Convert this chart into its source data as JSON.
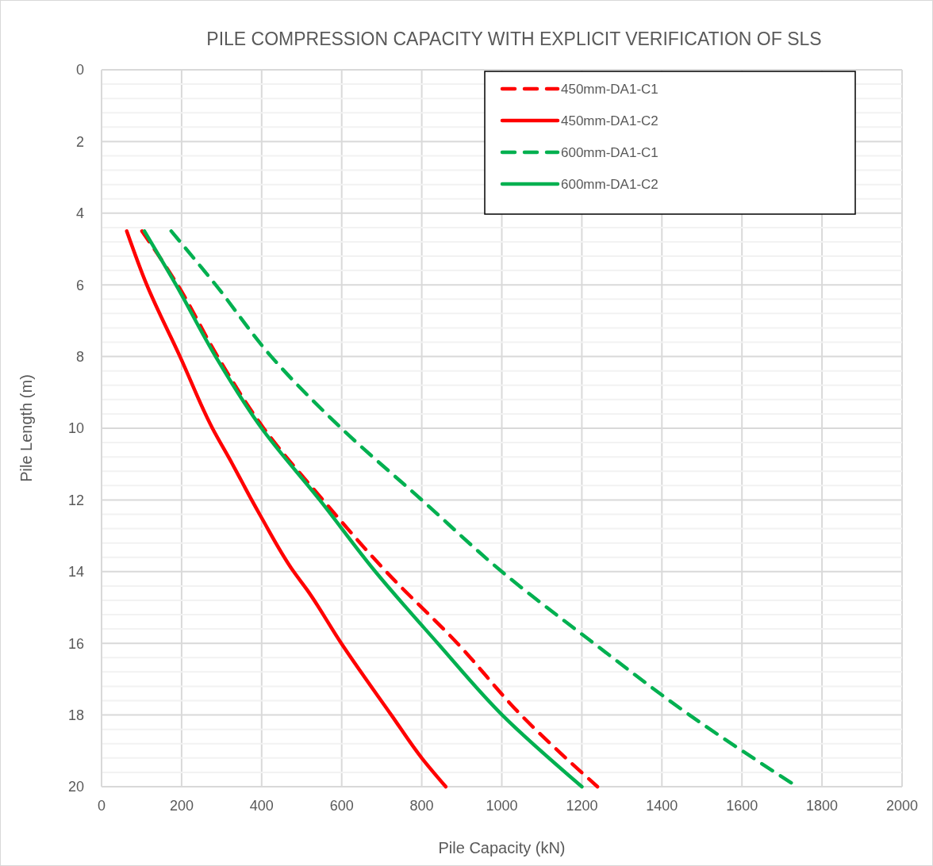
{
  "chart_data": {
    "type": "line",
    "title": "PILE COMPRESSION CAPACITY WITH EXPLICIT VERIFICATION OF SLS",
    "xlabel": "Pile Capacity (kN)",
    "ylabel": "Pile Length (m)",
    "xlim": [
      0,
      2000
    ],
    "xticks": [
      0,
      200,
      400,
      600,
      800,
      1000,
      1200,
      1400,
      1600,
      1800,
      2000
    ],
    "ylim": [
      20,
      0
    ],
    "yticks": [
      0,
      {
        "value": 0.4,
        "label": null
      },
      {
        "value": 0.8,
        "label": null
      },
      {
        "value": 1.2,
        "label": null
      },
      {
        "value": 1.6,
        "label": null
      },
      2,
      {
        "value": 2.4,
        "label": null
      },
      {
        "value": 2.8,
        "label": null
      },
      {
        "value": 3.2,
        "label": null
      },
      {
        "value": 3.6,
        "label": null
      },
      4,
      {
        "value": 4.4,
        "label": null
      },
      {
        "value": 4.8,
        "label": null
      },
      {
        "value": 5.2,
        "label": null
      },
      {
        "value": 5.6,
        "label": null
      },
      6,
      {
        "value": 6.4,
        "label": null
      },
      {
        "value": 6.8,
        "label": null
      },
      {
        "value": 7.2,
        "label": null
      },
      {
        "value": 7.6,
        "label": null
      },
      8,
      {
        "value": 8.4,
        "label": null
      },
      {
        "value": 8.8,
        "label": null
      },
      {
        "value": 9.2,
        "label": null
      },
      {
        "value": 9.6,
        "label": null
      },
      10,
      {
        "value": 10.4,
        "label": null
      },
      {
        "value": 10.8,
        "label": null
      },
      {
        "value": 11.2,
        "label": null
      },
      {
        "value": 11.6,
        "label": null
      },
      12,
      {
        "value": 12.4,
        "label": null
      },
      {
        "value": 12.8,
        "label": null
      },
      {
        "value": 13.2,
        "label": null
      },
      {
        "value": 13.6,
        "label": null
      },
      14,
      {
        "value": 14.4,
        "label": null
      },
      {
        "value": 14.8,
        "label": null
      },
      {
        "value": 15.2,
        "label": null
      },
      {
        "value": 15.6,
        "label": null
      },
      16,
      {
        "value": 16.4,
        "label": null
      },
      {
        "value": 16.8,
        "label": null
      },
      {
        "value": 17.2,
        "label": null
      },
      {
        "value": 17.6,
        "label": null
      },
      18,
      {
        "value": 18.4,
        "label": null
      },
      {
        "value": 18.8,
        "label": null
      },
      {
        "value": 19.2,
        "label": null
      },
      {
        "value": 19.6,
        "label": null
      },
      20
    ],
    "grid": true,
    "legend": "top right",
    "series": [
      {
        "name": "450mm-DA1-C1",
        "color": "#ff0000",
        "line_style": "dashed",
        "x": [
          101,
          190,
          290,
          405,
          553,
          711,
          889,
          1048,
          1239
        ],
        "values": [
          4.5,
          6,
          8,
          10,
          12,
          14,
          16,
          18,
          20
        ]
      },
      {
        "name": "450mm-DA1-C2",
        "color": "#ff0000",
        "line_style": "solid",
        "x": [
          63,
          113,
          196,
          277,
          327,
          351,
          375,
          400,
          480,
          513,
          599,
          724,
          800,
          860
        ],
        "values": [
          4.5,
          6,
          8,
          10,
          11,
          11.5,
          12,
          12.5,
          14,
          14.5,
          16,
          18,
          19.2,
          20
        ]
      },
      {
        "name": "600mm-DA1-C1",
        "color": "#00b050",
        "line_style": "dashed",
        "x": [
          174,
          285,
          424,
          599,
          800,
          1000,
          1230,
          1469,
          1738
        ],
        "values": [
          4.5,
          6,
          8,
          10,
          12,
          14,
          16,
          18,
          20
        ]
      },
      {
        "name": "600mm-DA1-C2",
        "color": "#00b050",
        "line_style": "solid",
        "x": [
          107,
          186,
          285,
          400,
          545,
          684,
          840,
          1001,
          1200
        ],
        "values": [
          4.5,
          6,
          8,
          10,
          12,
          14,
          16,
          18,
          20
        ]
      }
    ]
  }
}
